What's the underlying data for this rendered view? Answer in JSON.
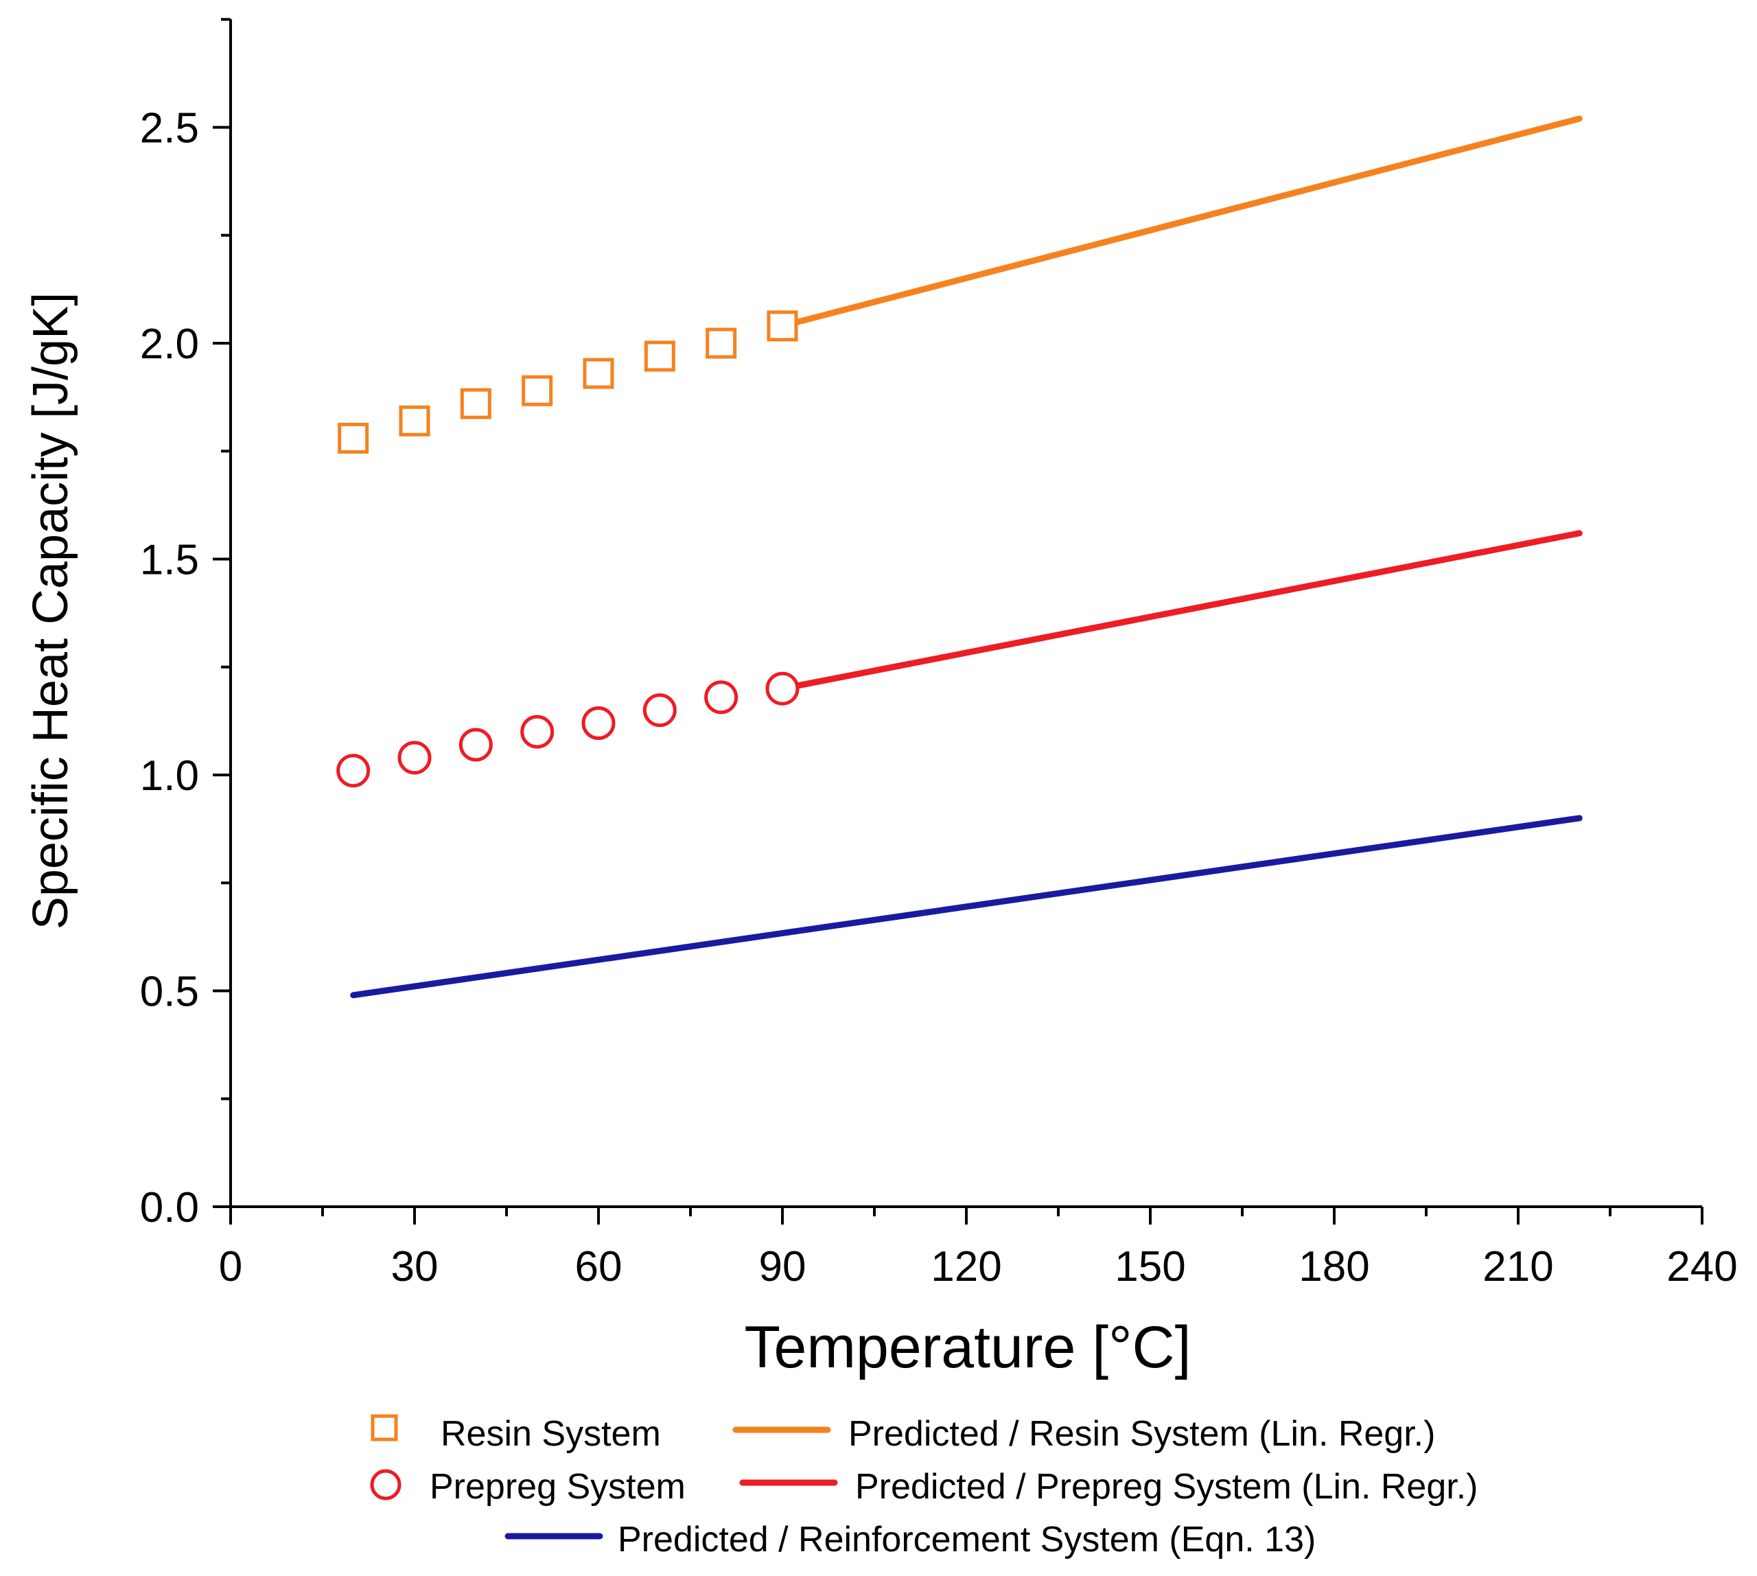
{
  "chart_data": {
    "type": "scatter",
    "title": "",
    "xlabel": "Temperature [°C]",
    "ylabel": "Specific Heat Capacity [J/gK]",
    "xlim": [
      0,
      240
    ],
    "ylim": [
      0,
      2.75
    ],
    "xticks": [
      0,
      30,
      60,
      90,
      120,
      150,
      180,
      210,
      240
    ],
    "xtick_labels": [
      "0",
      "30",
      "60",
      "90",
      "120",
      "150",
      "180",
      "210",
      "240"
    ],
    "yticks": [
      0,
      0.5,
      1.0,
      1.5,
      2.0,
      2.5
    ],
    "ytick_labels": [
      "0.0",
      "0.5",
      "1.0",
      "1.5",
      "2.0",
      "2.5"
    ],
    "grid": false,
    "legend_position": "bottom",
    "series": [
      {
        "name": "Resin System",
        "kind": "markers",
        "marker": "square",
        "color": "#f5821f",
        "x": [
          20,
          30,
          40,
          50,
          60,
          70,
          80,
          90
        ],
        "y": [
          1.78,
          1.82,
          1.86,
          1.89,
          1.93,
          1.97,
          2.0,
          2.04
        ]
      },
      {
        "name": "Predicted / Resin System (Lin. Regr.)",
        "kind": "line",
        "color": "#f5821f",
        "x": [
          90,
          220
        ],
        "y": [
          2.04,
          2.52
        ]
      },
      {
        "name": "Prepreg System",
        "kind": "markers",
        "marker": "circle",
        "color": "#ee1c24",
        "x": [
          20,
          30,
          40,
          50,
          60,
          70,
          80,
          90
        ],
        "y": [
          1.01,
          1.04,
          1.07,
          1.1,
          1.12,
          1.15,
          1.18,
          1.2
        ]
      },
      {
        "name": "Predicted / Prepreg System (Lin. Regr.)",
        "kind": "line",
        "color": "#ee1c24",
        "x": [
          90,
          220
        ],
        "y": [
          1.2,
          1.56
        ]
      },
      {
        "name": "Predicted / Reinforcement System (Eqn. 13)",
        "kind": "line",
        "color": "#1a1aa0",
        "x": [
          20,
          220
        ],
        "y": [
          0.49,
          0.9
        ]
      }
    ]
  }
}
